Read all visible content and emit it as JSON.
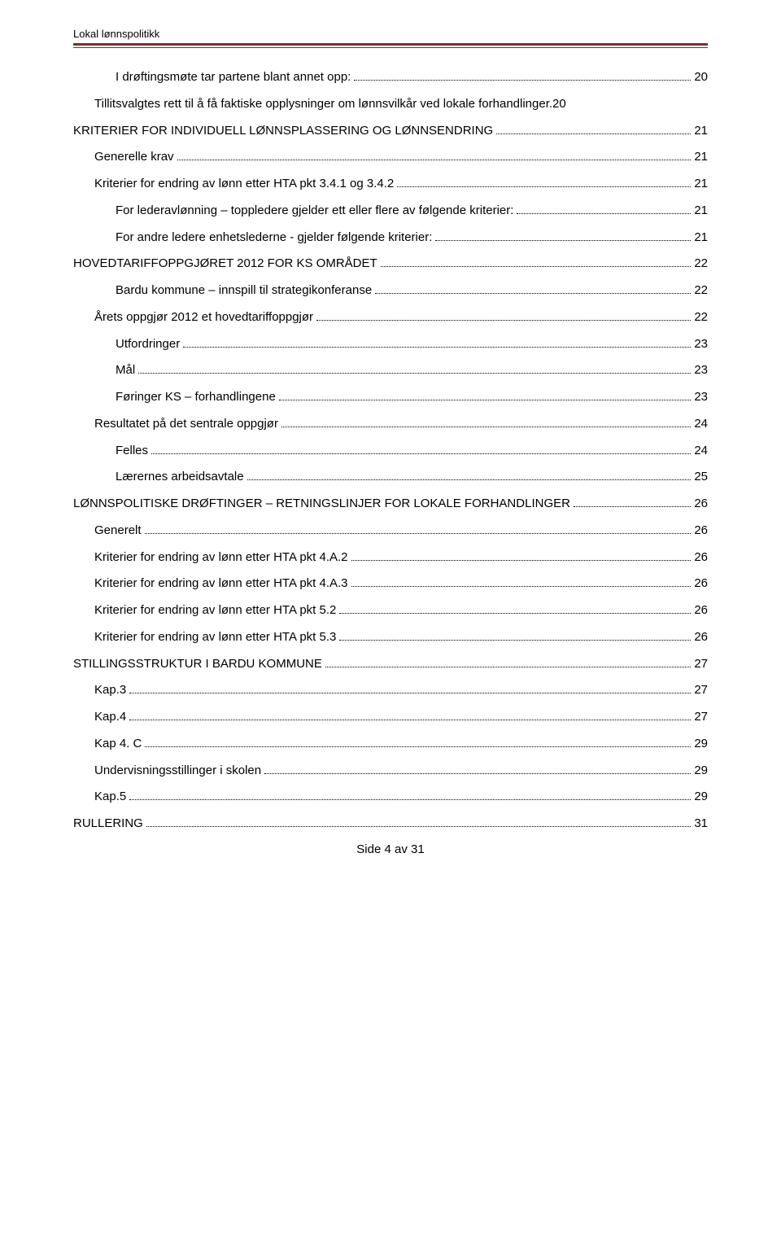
{
  "header": "Lokal lønnspolitikk",
  "footer": "Side 4 av 31",
  "toc": [
    {
      "text": "I drøftingsmøte tar partene blant annet opp:",
      "page": "20",
      "indent": 2
    },
    {
      "text": "Tillitsvalgtes rett til å få faktiske opplysninger om lønnsvilkår ved lokale forhandlinger.",
      "page": "20",
      "indent": 1,
      "nodots": true,
      "wrap": true
    },
    {
      "text": "KRITERIER FOR INDIVIDUELL LØNNSPLASSERING OG LØNNSENDRING",
      "page": "21",
      "indent": 0
    },
    {
      "text": "Generelle krav",
      "page": "21",
      "indent": 1
    },
    {
      "text": "Kriterier for endring av lønn etter HTA pkt 3.4.1 og 3.4.2",
      "page": "21",
      "indent": 1
    },
    {
      "text": "For lederavlønning – toppledere gjelder ett eller flere av følgende kriterier:",
      "page": "21",
      "indent": 2
    },
    {
      "text": "For andre ledere enhetslederne - gjelder følgende kriterier:",
      "page": "21",
      "indent": 2
    },
    {
      "text": "HOVEDTARIFFOPPGJØRET 2012 FOR KS OMRÅDET",
      "page": "22",
      "indent": 0
    },
    {
      "text": "Bardu kommune – innspill til strategikonferanse",
      "page": "22",
      "indent": 2
    },
    {
      "text": "Årets oppgjør 2012 et hovedtariffoppgjør",
      "page": "22",
      "indent": 1
    },
    {
      "text": "Utfordringer",
      "page": "23",
      "indent": 2
    },
    {
      "text": "Mål",
      "page": "23",
      "indent": 2
    },
    {
      "text": "Føringer KS – forhandlingene",
      "page": "23",
      "indent": 2
    },
    {
      "text": "Resultatet på det sentrale oppgjør",
      "page": "24",
      "indent": 1
    },
    {
      "text": "Felles",
      "page": "24",
      "indent": 2
    },
    {
      "text": "Lærernes arbeidsavtale",
      "page": "25",
      "indent": 2
    },
    {
      "text": "LØNNSPOLITISKE DRØFTINGER – RETNINGSLINJER FOR LOKALE FORHANDLINGER",
      "page": "26",
      "indent": 0,
      "wrap": true
    },
    {
      "text": "Generelt",
      "page": "26",
      "indent": 1
    },
    {
      "text": "Kriterier for endring av lønn etter HTA pkt 4.A.2",
      "page": "26",
      "indent": 1
    },
    {
      "text": "Kriterier for endring av lønn etter HTA pkt 4.A.3",
      "page": "26",
      "indent": 1
    },
    {
      "text": "Kriterier for endring av lønn etter HTA pkt 5.2",
      "page": "26",
      "indent": 1
    },
    {
      "text": "Kriterier for endring av lønn etter HTA pkt 5.3",
      "page": "26",
      "indent": 1
    },
    {
      "text": "STILLINGSSTRUKTUR I BARDU KOMMUNE",
      "page": "27",
      "indent": 0
    },
    {
      "text": "Kap.3",
      "page": "27",
      "indent": 1
    },
    {
      "text": "Kap.4",
      "page": "27",
      "indent": 1
    },
    {
      "text": "Kap 4. C",
      "page": "29",
      "indent": 1
    },
    {
      "text": "Undervisningsstillinger i skolen",
      "page": "29",
      "indent": 1
    },
    {
      "text": "Kap.5",
      "page": "29",
      "indent": 1
    },
    {
      "text": "RULLERING",
      "page": "31",
      "indent": 0
    }
  ]
}
